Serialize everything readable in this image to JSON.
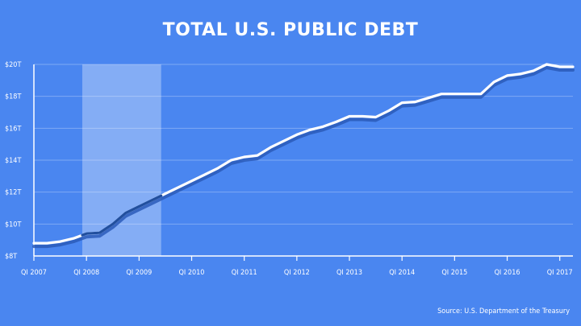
{
  "chart_data": {
    "type": "line",
    "title": "TOTAL U.S. PUBLIC DEBT",
    "source": "Source: U.S. Department of the Treasury",
    "xlabel": "",
    "ylabel": "",
    "ylim": [
      8,
      20
    ],
    "yticks": [
      {
        "value": 8,
        "label": "$8T"
      },
      {
        "value": 10,
        "label": "$10T"
      },
      {
        "value": 12,
        "label": "$12T"
      },
      {
        "value": 14,
        "label": "$14T"
      },
      {
        "value": 16,
        "label": "$16T"
      },
      {
        "value": 18,
        "label": "$18T"
      },
      {
        "value": 20,
        "label": "$20T"
      }
    ],
    "xticks": [
      {
        "value": 2007.0,
        "label": "QI 2007"
      },
      {
        "value": 2008.0,
        "label": "QI 2008"
      },
      {
        "value": 2009.0,
        "label": "QI 2009"
      },
      {
        "value": 2010.0,
        "label": "QI 2010"
      },
      {
        "value": 2011.0,
        "label": "QI 2011"
      },
      {
        "value": 2012.0,
        "label": "QI 2012"
      },
      {
        "value": 2013.0,
        "label": "QI 2013"
      },
      {
        "value": 2014.0,
        "label": "QI 2014"
      },
      {
        "value": 2015.0,
        "label": "QI 2015"
      },
      {
        "value": 2016.0,
        "label": "QI 2016"
      },
      {
        "value": 2017.0,
        "label": "QI 2017"
      }
    ],
    "shaded_region": [
      2007.92,
      2009.42
    ],
    "grid": true,
    "series": [
      {
        "values": [
          [
            2007.0,
            8.8
          ],
          [
            2007.25,
            8.8
          ],
          [
            2007.5,
            8.9
          ],
          [
            2007.75,
            9.1
          ],
          [
            2008.0,
            9.4
          ],
          [
            2008.25,
            9.45
          ],
          [
            2008.5,
            10.0
          ],
          [
            2008.75,
            10.7
          ],
          [
            2009.0,
            11.1
          ],
          [
            2009.25,
            11.5
          ],
          [
            2009.5,
            11.9
          ],
          [
            2009.75,
            12.3
          ],
          [
            2010.0,
            12.7
          ],
          [
            2010.25,
            13.1
          ],
          [
            2010.5,
            13.5
          ],
          [
            2010.75,
            14.0
          ],
          [
            2011.0,
            14.2
          ],
          [
            2011.25,
            14.3
          ],
          [
            2011.5,
            14.8
          ],
          [
            2011.75,
            15.2
          ],
          [
            2012.0,
            15.6
          ],
          [
            2012.25,
            15.9
          ],
          [
            2012.5,
            16.1
          ],
          [
            2012.75,
            16.4
          ],
          [
            2013.0,
            16.75
          ],
          [
            2013.25,
            16.75
          ],
          [
            2013.5,
            16.7
          ],
          [
            2013.75,
            17.1
          ],
          [
            2014.0,
            17.6
          ],
          [
            2014.25,
            17.65
          ],
          [
            2014.5,
            17.9
          ],
          [
            2014.75,
            18.15
          ],
          [
            2015.0,
            18.15
          ],
          [
            2015.25,
            18.15
          ],
          [
            2015.5,
            18.15
          ],
          [
            2015.75,
            18.9
          ],
          [
            2016.0,
            19.3
          ],
          [
            2016.25,
            19.4
          ],
          [
            2016.5,
            19.6
          ],
          [
            2016.75,
            20.0
          ],
          [
            2017.0,
            19.85
          ],
          [
            2017.25,
            19.85
          ]
        ]
      }
    ]
  }
}
